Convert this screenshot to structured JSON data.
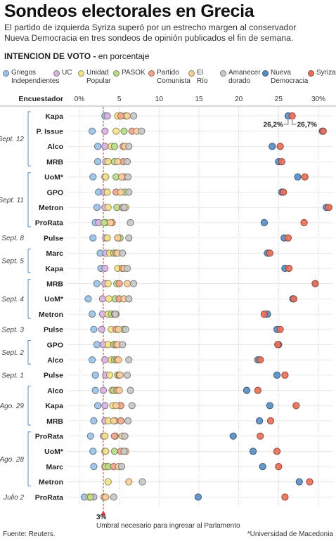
{
  "header": {
    "title": "Sondeos electorales en Grecia",
    "subtitle": "El partido de izquierda Syriza superó por un estrecho margen al conservador Nueva Democracia en tres sondeos de opinión publicados el fin de semana.",
    "section_bold": "INTENCION DE VOTO -",
    "section_rest": " en porcentaje"
  },
  "legend": [
    {
      "label": "Griegos\nIndependientes",
      "color": "#9ec3e6"
    },
    {
      "label": "UC",
      "color": "#d9b3e0"
    },
    {
      "label": "Unidad\nPopular",
      "color": "#f3e38a"
    },
    {
      "label": "PASOK",
      "color": "#b9dc8c"
    },
    {
      "label": "Partido\nComunista",
      "color": "#f2a58e"
    },
    {
      "label": "El Río",
      "color": "#f8cf9a"
    },
    {
      "label": "Amanecer\ndorado",
      "color": "#c8c8c8"
    },
    {
      "label": "Nueva\nDemocracia",
      "color": "#5b8ec4"
    },
    {
      "label": "Syriza",
      "color": "#e8705a"
    }
  ],
  "chart_data": {
    "type": "scatter",
    "x_axis_title": "Encuestador",
    "xlim": [
      0,
      32
    ],
    "x_ticks": [
      {
        "value": 0,
        "label": "0%"
      },
      {
        "value": 5,
        "label": "5"
      },
      {
        "value": 10,
        "label": "10"
      },
      {
        "value": 15,
        "label": "15"
      },
      {
        "value": 20,
        "label": "20"
      },
      {
        "value": 25,
        "label": "25"
      },
      {
        "value": 30,
        "label": "30%"
      }
    ],
    "threshold": {
      "value": 3,
      "label": "3%",
      "text": "Umbral necesario para ingresar al Parlamento"
    },
    "series_order": [
      "Griegos Independientes",
      "UC",
      "Unidad Popular",
      "PASOK",
      "Partido Comunista",
      "El Río",
      "Amanecer dorado",
      "Nueva Democracia",
      "Syriza"
    ],
    "series_colors": [
      "#9ec3e6",
      "#d9b3e0",
      "#f3e38a",
      "#b9dc8c",
      "#f2a58e",
      "#f8cf9a",
      "#c8c8c8",
      "#5b8ec4",
      "#e8705a"
    ],
    "date_groups": [
      {
        "label": "Sept. 12",
        "start": 0,
        "end": 3
      },
      {
        "label": "Sept. 11",
        "start": 4,
        "end": 7
      },
      {
        "label": "Sept. 8",
        "start": 8,
        "end": 8
      },
      {
        "label": "Sept. 5",
        "start": 9,
        "end": 10
      },
      {
        "label": "Sept. 4",
        "start": 11,
        "end": 13
      },
      {
        "label": "Sept. 3",
        "start": 14,
        "end": 14
      },
      {
        "label": "Sept. 2",
        "start": 15,
        "end": 16
      },
      {
        "label": "Sept. 1",
        "start": 17,
        "end": 17
      },
      {
        "label": "Ago. 29",
        "start": 18,
        "end": 20
      },
      {
        "label": "Ago. 28",
        "start": 21,
        "end": 24
      },
      {
        "label": "Julio 2",
        "start": 25,
        "end": 25
      }
    ],
    "polls": [
      {
        "pollster": "Kapa",
        "values": [
          3.2,
          3.5,
          4.8,
          5.8,
          5.2,
          6.0,
          6.8,
          26.2,
          26.7
        ]
      },
      {
        "pollster": "P. Issue",
        "values": [
          1.6,
          3.2,
          4.6,
          5.6,
          6.6,
          7.2,
          7.8,
          30.5,
          30.6
        ]
      },
      {
        "pollster": "Alco",
        "values": [
          2.3,
          3.2,
          4.0,
          4.4,
          5.5,
          5.7,
          6.2,
          24.2,
          25.2
        ]
      },
      {
        "pollster": "MRB",
        "values": [
          2.3,
          3.3,
          3.6,
          4.4,
          5.5,
          4.8,
          6.0,
          25.0,
          25.4
        ]
      },
      {
        "pollster": "UoM*",
        "values": [
          1.7,
          3.2,
          3.3,
          4.6,
          5.6,
          5.3,
          6.1,
          27.4,
          28.3
        ]
      },
      {
        "pollster": "GPO",
        "values": [
          2.4,
          3.1,
          3.5,
          5.7,
          4.6,
          5.2,
          6.2,
          25.4,
          25.6
        ]
      },
      {
        "pollster": "Metron",
        "values": [
          2.2,
          3.2,
          3.6,
          4.7,
          5.4,
          5.8,
          5.6,
          31.0,
          31.3
        ]
      },
      {
        "pollster": "ProRata",
        "values": [
          2.0,
          2.4,
          3.3,
          3.1,
          4.1,
          3.9,
          6.4,
          23.2,
          28.2
        ]
      },
      {
        "pollster": "Pulse",
        "values": [
          1.7,
          3.3,
          3.5,
          5.1,
          4.8,
          4.8,
          6.2,
          25.7,
          26.2
        ]
      },
      {
        "pollster": "Marc",
        "values": [
          2.6,
          3.3,
          3.8,
          4.3,
          4.6,
          4.8,
          5.4,
          23.6,
          23.9
        ]
      },
      {
        "pollster": "Kapa",
        "values": [
          2.7,
          3.2,
          4.8,
          5.4,
          5.4,
          5.6,
          6.0,
          25.8,
          26.3
        ]
      },
      {
        "pollster": "MRB",
        "values": [
          2.2,
          3.2,
          3.6,
          4.7,
          5.0,
          6.0,
          6.8,
          29.6,
          29.6
        ]
      },
      {
        "pollster": "UoM*",
        "values": [
          1.1,
          2.9,
          3.7,
          4.5,
          5.0,
          5.6,
          6.2,
          26.8,
          26.9
        ]
      },
      {
        "pollster": "Metron",
        "values": [
          1.6,
          2.9,
          3.6,
          4.0,
          4.4,
          4.6,
          4.5,
          23.6,
          23.2
        ]
      },
      {
        "pollster": "Pulse",
        "values": [
          1.8,
          2.8,
          4.0,
          5.5,
          4.6,
          4.9,
          5.8,
          24.8,
          25.2
        ]
      },
      {
        "pollster": "GPO",
        "values": [
          2.2,
          3.0,
          3.6,
          4.3,
          4.6,
          4.8,
          5.4,
          25.0,
          24.9
        ]
      },
      {
        "pollster": "Alco",
        "values": [
          1.6,
          3.2,
          4.0,
          4.4,
          4.7,
          4.9,
          6.2,
          22.4,
          22.7
        ]
      },
      {
        "pollster": "Pulse",
        "values": [
          2.0,
          3.3,
          3.8,
          4.8,
          5.0,
          5.1,
          6.0,
          24.8,
          25.8
        ]
      },
      {
        "pollster": "Alco",
        "values": [
          2.0,
          3.0,
          4.1,
          4.3,
          4.7,
          5.0,
          6.4,
          21.0,
          22.4
        ]
      },
      {
        "pollster": "Kapa",
        "values": [
          2.3,
          3.2,
          4.2,
          5.1,
          5.2,
          4.6,
          6.6,
          23.9,
          27.2
        ]
      },
      {
        "pollster": "MRB",
        "values": [
          1.8,
          3.2,
          3.6,
          4.5,
          5.2,
          4.3,
          6.1,
          22.6,
          24.0
        ]
      },
      {
        "pollster": "ProRata",
        "values": [
          1.4,
          3.0,
          3.2,
          4.5,
          4.4,
          5.4,
          5.7,
          19.3,
          22.7
        ]
      },
      {
        "pollster": "UoM*",
        "values": [
          1.7,
          3.2,
          3.3,
          4.4,
          5.2,
          5.8,
          5.6,
          21.8,
          24.8
        ]
      },
      {
        "pollster": "Marc",
        "values": [
          1.8,
          3.2,
          3.3,
          3.6,
          4.3,
          4.9,
          5.3,
          23.0,
          25.0
        ]
      },
      {
        "pollster": "Metron",
        "values": [
          null,
          null,
          3.6,
          null,
          null,
          6.2,
          7.9,
          27.6,
          28.9
        ]
      },
      {
        "pollster": "ProRata",
        "values": [
          0.6,
          1.8,
          1.2,
          1.4,
          3.1,
          3.3,
          4.3,
          14.9,
          25.8
        ]
      }
    ],
    "annotation": {
      "row": 0,
      "left_label": "26,2%",
      "right_label": "26,7%",
      "left_value": 26.2,
      "right_value": 26.7
    }
  },
  "footer": {
    "source": "Fuente: Reuters.",
    "note": "*Universidad de Macedonia"
  }
}
